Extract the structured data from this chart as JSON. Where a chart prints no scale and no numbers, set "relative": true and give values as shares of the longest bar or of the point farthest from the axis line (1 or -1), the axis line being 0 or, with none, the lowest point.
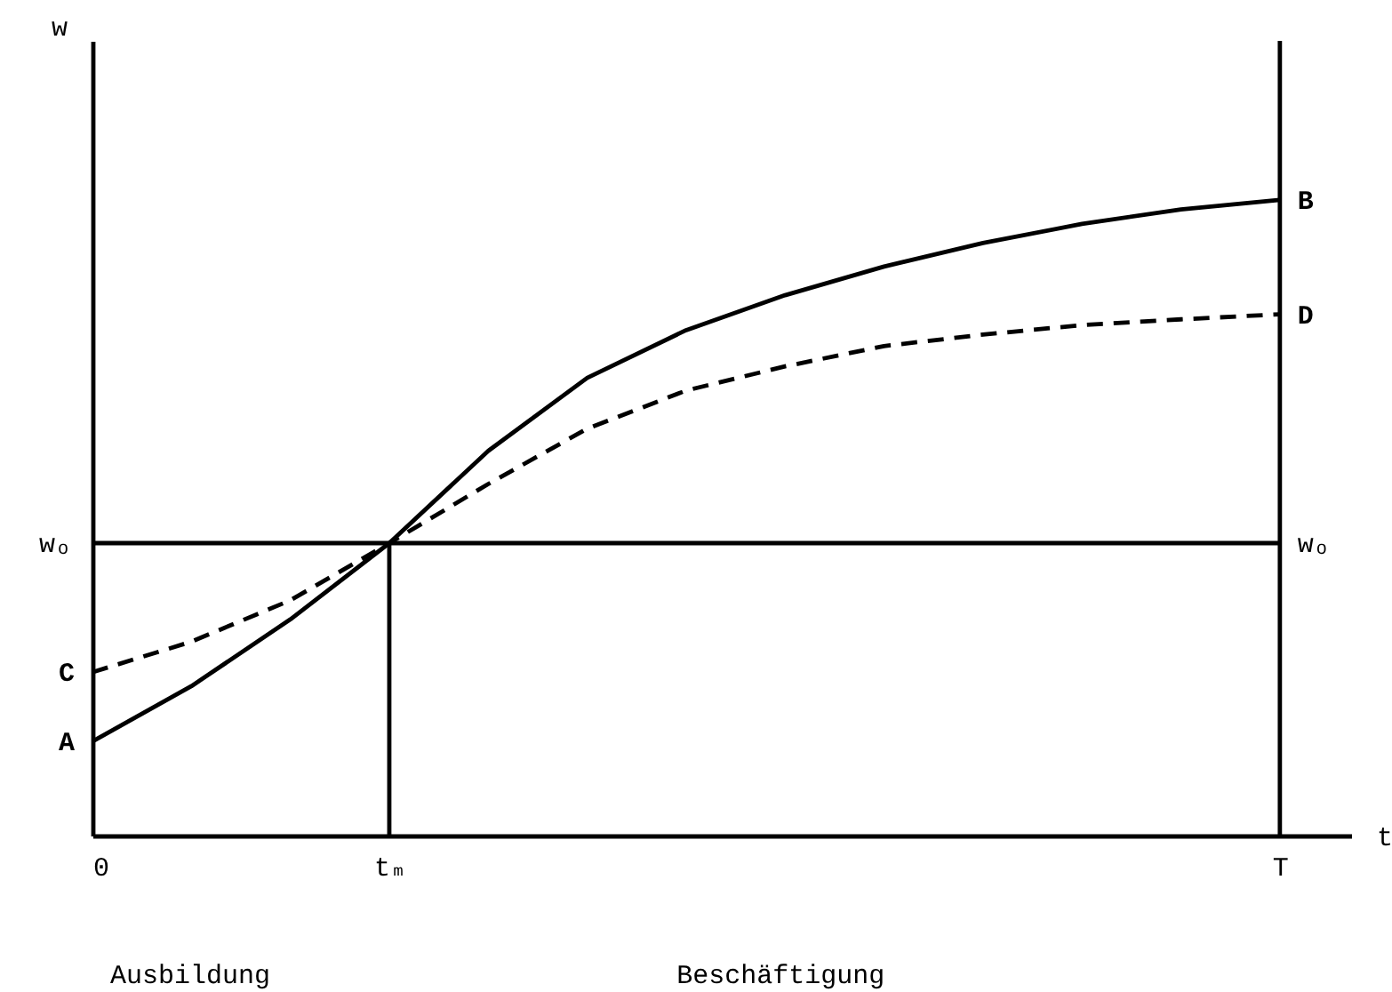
{
  "chart_data": {
    "type": "line",
    "relative": true,
    "xlabel": "t",
    "categories": [
      "0",
      null,
      null,
      "tₘ",
      null,
      null,
      null,
      null,
      null,
      null,
      null,
      null,
      "T"
    ],
    "series": [
      {
        "color": "#000000",
        "line_style": "solid",
        "values": [
          0.148,
          0.235,
          0.34,
          0.46,
          0.605,
          0.72,
          0.795,
          0.85,
          0.895,
          0.932,
          0.962,
          0.985,
          1
        ]
      },
      {
        "color": "#000000",
        "line_style": "dashed",
        "values": [
          0.257,
          0.305,
          0.37,
          0.46,
          0.553,
          0.64,
          0.7,
          0.738,
          0.77,
          0.788,
          0.803,
          0.812,
          0.82
        ]
      }
    ],
    "ref_lines": [
      {
        "axis": "y",
        "value": 0.46,
        "label": "wₒ",
        "color": "#000000"
      },
      {
        "axis": "x",
        "value": "tₘ",
        "color": "#000000"
      },
      {
        "axis": "x",
        "value": "T",
        "color": "#000000"
      }
    ],
    "annotations": [
      {
        "text": "A",
        "x": "0",
        "y": 0.148
      },
      {
        "text": "C",
        "x": "0",
        "y": 0.257
      },
      {
        "text": "B",
        "x": "T",
        "y": 1
      },
      {
        "text": "D",
        "x": "T",
        "y": 0.82
      },
      "w",
      "Ausbildung",
      "Beschäftigung"
    ],
    "grid": false,
    "marker": "none"
  }
}
